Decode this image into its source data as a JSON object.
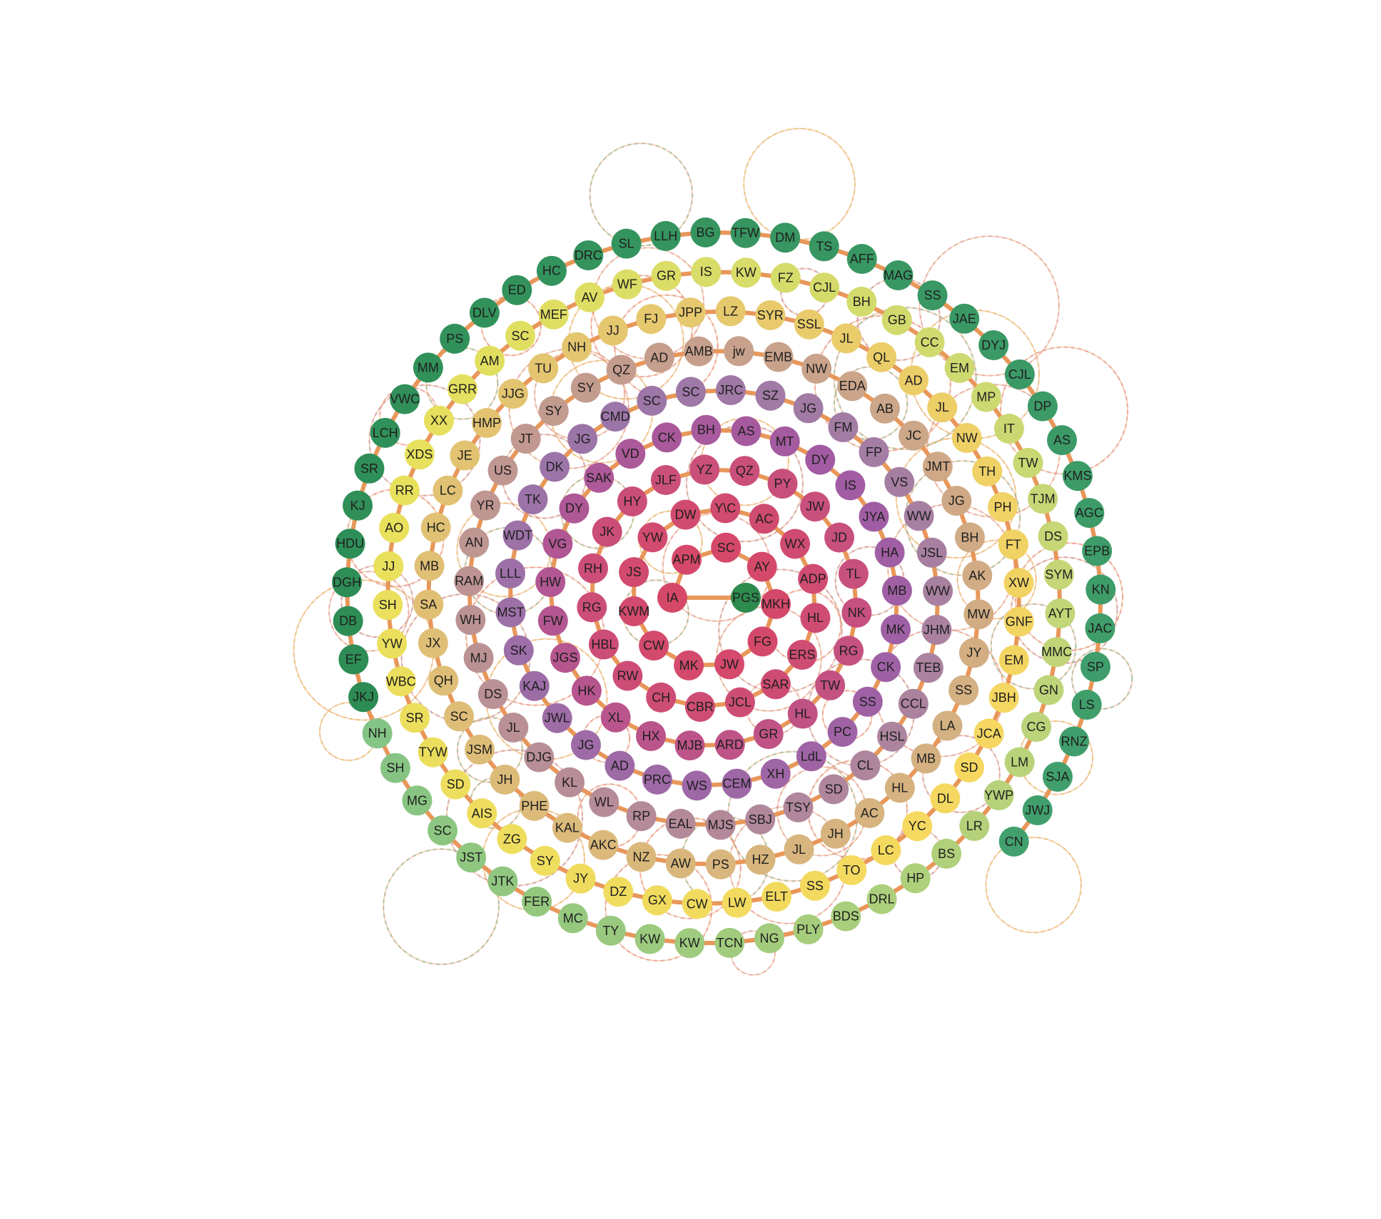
{
  "diagram": {
    "type": "spiral-network",
    "edge_color": "#e8975a",
    "center": {
      "label": "PGS",
      "color": "#2e8b4e"
    },
    "spiral_labels": [
      "IA",
      "APM",
      "SC",
      "AY",
      "MKH",
      "FG",
      "JW",
      "MK",
      "CW",
      "KWM",
      "JS",
      "YW",
      "DW",
      "Y\\C",
      "AC",
      "WX",
      "ADP",
      "HL",
      "ERS",
      "SAR",
      "JCL",
      "CBR",
      "CH",
      "RW",
      "HBL",
      "RG",
      "RH",
      "JK",
      "HY",
      "JLF",
      "YZ",
      "QZ",
      "PY",
      "JW",
      "JD",
      "TL",
      "NK",
      "RG",
      "TW",
      "HL",
      "GR",
      "ARD",
      "MJB",
      "HX",
      "XL",
      "HK",
      "JGS",
      "FW",
      "HW",
      "VG",
      "DY",
      "SAK",
      "VD",
      "CK",
      "BH",
      "AS",
      "MT",
      "DY",
      "IS",
      "JYA",
      "HA",
      "MB",
      "MK",
      "CK",
      "SS",
      "PC",
      "LdL",
      "XH",
      "CEM",
      "WS",
      "PRC",
      "AD",
      "JG",
      "JWL",
      "KAJ",
      "SK",
      "MST",
      "LLL",
      "WDT",
      "TK",
      "DK",
      "JG",
      "CMD",
      "SC",
      "SC",
      "JRC",
      "SZ",
      "JG",
      "FM",
      "FP",
      "VS",
      "WW",
      "JSL",
      "WW",
      "JHM",
      "TEB",
      "CCL",
      "HSL",
      "CL",
      "SD",
      "TSY",
      "SBJ",
      "MJS",
      "EAL",
      "RP",
      "WL",
      "KL",
      "DJG",
      "JL",
      "DS",
      "MJ",
      "WH",
      "RAM",
      "AN",
      "YR",
      "US",
      "JT",
      "SY",
      "SY",
      "QZ",
      "AD",
      "AMB",
      "jw",
      "EMB",
      "NW",
      "EDA",
      "AB",
      "JC",
      "JMT",
      "JG",
      "BH",
      "AK",
      "MW",
      "JY",
      "SS",
      "LA",
      "MB",
      "HL",
      "AC",
      "JH",
      "JL",
      "HZ",
      "PS",
      "AW",
      "NZ",
      "AKC",
      "KAL",
      "PHE",
      "JH",
      "JSM",
      "SC",
      "QH",
      "JX",
      "SA",
      "MB",
      "HC",
      "LC",
      "JE",
      "HMP",
      "JJG",
      "TU",
      "NH",
      "JJ",
      "FJ",
      "JPP",
      "LZ",
      "SYR",
      "SSL",
      "JL",
      "QL",
      "AD",
      "JL",
      "NW",
      "TH",
      "PH",
      "FT",
      "XW",
      "GNF",
      "EM",
      "JBH",
      "JCA",
      "SD",
      "DL",
      "YC",
      "LC",
      "TO",
      "SS",
      "ELT",
      "LW",
      "CW",
      "GX",
      "DZ",
      "JY",
      "SY",
      "ZG",
      "AIS",
      "SD",
      "TYW",
      "SR",
      "WBC",
      "YW",
      "SH",
      "JJ",
      "AO",
      "RR",
      "XDS",
      "XX",
      "GRR",
      "AM",
      "SC",
      "MEF",
      "AV",
      "WF",
      "GR",
      "IS",
      "KW",
      "FZ",
      "CJL",
      "BH",
      "GB",
      "CC",
      "EM",
      "MP",
      "IT",
      "TW",
      "TJM",
      "DS",
      "SYM",
      "AYT",
      "MMC",
      "GN",
      "CG",
      "LM",
      "YWP",
      "LR",
      "BS",
      "HP",
      "DRL",
      "BDS",
      "PLY",
      "NG",
      "TCN",
      "KW",
      "KW",
      "TY",
      "MC",
      "FER",
      "JTK",
      "JST",
      "SC",
      "MG",
      "SH",
      "NH",
      "JKJ",
      "EF",
      "DB",
      "DGH",
      "HDU",
      "KJ",
      "SR",
      "LCH",
      "VWC",
      "MM",
      "PS",
      "DLV",
      "ED",
      "HC",
      "DRC",
      "SL",
      "LLH",
      "BG",
      "TFW",
      "DM",
      "TS",
      "AFF",
      "MAG",
      "SS",
      "JAE",
      "DYJ",
      "CJL",
      "DP",
      "AS",
      "KMS",
      "AGC",
      "EPB",
      "KN",
      "JAC",
      "SP",
      "LS",
      "RNZ",
      "SJA",
      "JWJ",
      "CN"
    ]
  }
}
